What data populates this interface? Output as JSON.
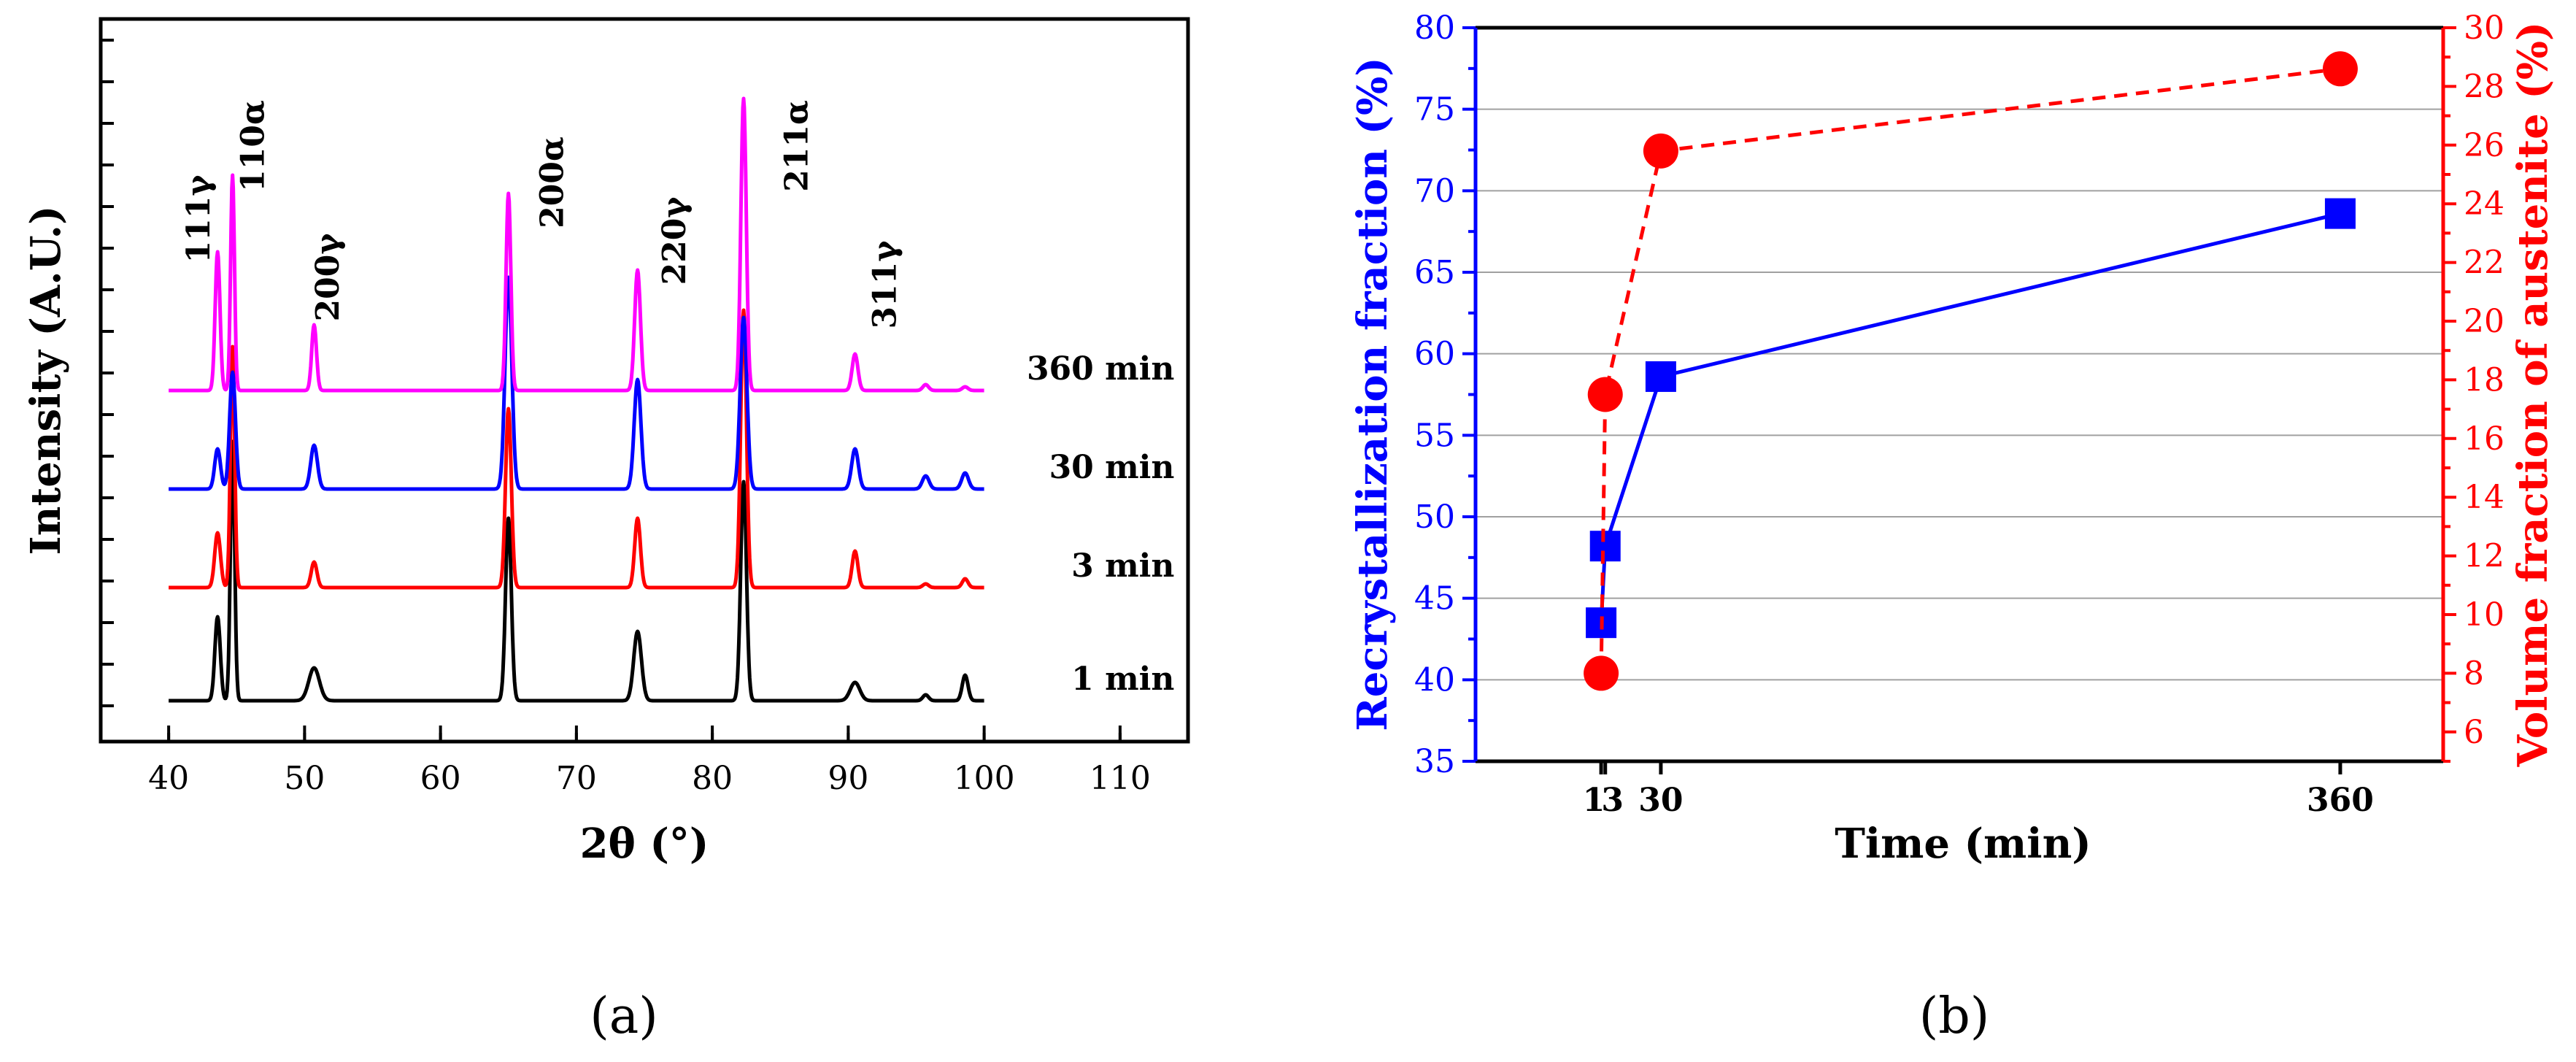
{
  "chart_data": [
    {
      "panel_label": "(a)",
      "type": "line",
      "xlabel": "2θ (°)",
      "ylabel": "Intensity (A.U.)",
      "xlim": [
        35,
        115
      ],
      "x_ticks": [
        40,
        50,
        60,
        70,
        80,
        90,
        100,
        110
      ],
      "y_tick_labels": "none",
      "series": [
        {
          "name": "1 min",
          "color": "#000000",
          "baseline": 0.0,
          "peaks": [
            [
              43.6,
              1.15,
              0.28
            ],
            [
              44.7,
              3.55,
              0.22
            ],
            [
              50.7,
              0.45,
              0.55
            ],
            [
              65.0,
              2.5,
              0.3
            ],
            [
              74.5,
              0.95,
              0.4
            ],
            [
              82.3,
              3.0,
              0.3
            ],
            [
              90.5,
              0.25,
              0.5
            ],
            [
              95.7,
              0.08,
              0.3
            ],
            [
              98.6,
              0.35,
              0.3
            ]
          ]
        },
        {
          "name": "3 min",
          "color": "#ff0000",
          "baseline": 1.55,
          "peaks": [
            [
              43.6,
              0.75,
              0.3
            ],
            [
              44.7,
              3.3,
              0.22
            ],
            [
              50.7,
              0.35,
              0.3
            ],
            [
              65.0,
              2.45,
              0.3
            ],
            [
              74.5,
              0.95,
              0.3
            ],
            [
              82.3,
              3.8,
              0.3
            ],
            [
              90.5,
              0.5,
              0.3
            ],
            [
              95.7,
              0.05,
              0.3
            ],
            [
              98.6,
              0.12,
              0.3
            ]
          ]
        },
        {
          "name": "30 min",
          "color": "#0000ff",
          "baseline": 2.9,
          "peaks": [
            [
              43.6,
              0.55,
              0.3
            ],
            [
              44.7,
              1.6,
              0.3
            ],
            [
              50.7,
              0.6,
              0.35
            ],
            [
              65.0,
              2.9,
              0.35
            ],
            [
              74.5,
              1.5,
              0.35
            ],
            [
              82.3,
              2.35,
              0.35
            ],
            [
              90.5,
              0.55,
              0.35
            ],
            [
              95.7,
              0.18,
              0.35
            ],
            [
              98.6,
              0.22,
              0.35
            ]
          ]
        },
        {
          "name": "360 min",
          "color": "#ff00ff",
          "baseline": 4.25,
          "peaks": [
            [
              43.6,
              1.9,
              0.25
            ],
            [
              44.7,
              2.95,
              0.2
            ],
            [
              50.7,
              0.9,
              0.25
            ],
            [
              65.0,
              2.7,
              0.25
            ],
            [
              74.5,
              1.65,
              0.3
            ],
            [
              82.3,
              4.0,
              0.28
            ],
            [
              90.5,
              0.5,
              0.3
            ],
            [
              95.7,
              0.08,
              0.3
            ],
            [
              98.6,
              0.05,
              0.3
            ]
          ]
        }
      ],
      "peak_labels": [
        {
          "text": "111γ",
          "x": 43.6
        },
        {
          "text": "110α",
          "x": 44.7
        },
        {
          "text": "200γ",
          "x": 50.7
        },
        {
          "text": "200α",
          "x": 65.0
        },
        {
          "text": "220γ",
          "x": 74.5
        },
        {
          "text": "211α",
          "x": 82.3
        },
        {
          "text": "311γ",
          "x": 90.5
        }
      ]
    },
    {
      "panel_label": "(b)",
      "type": "line",
      "xlabel": "Time (min)",
      "ylabel": "Recrystallization fraction (%)",
      "y2label": "Volume fraction of austenite (%)",
      "x_ticks": [
        1,
        3,
        30,
        360
      ],
      "xlim": [
        -60,
        410
      ],
      "ylim": [
        35,
        80
      ],
      "y_ticks": [
        35,
        40,
        45,
        50,
        55,
        60,
        65,
        70,
        75,
        80
      ],
      "y2lim": [
        5,
        30
      ],
      "y2_ticks": [
        6,
        8,
        10,
        12,
        14,
        16,
        18,
        20,
        22,
        24,
        26,
        28,
        30
      ],
      "grid": "horizontal",
      "series": [
        {
          "name": "Recrystallization fraction (%)",
          "axis": "left",
          "color": "#0000ff",
          "marker": "square",
          "line": "solid",
          "x": [
            1,
            3,
            30,
            360
          ],
          "y": [
            43.5,
            48.2,
            58.6,
            68.6
          ]
        },
        {
          "name": "Volume fraction of austenite (%)",
          "axis": "right",
          "color": "#ff0000",
          "marker": "circle",
          "line": "dashed",
          "x": [
            1,
            3,
            30,
            360
          ],
          "y": [
            8.0,
            17.5,
            25.8,
            28.6
          ]
        }
      ]
    }
  ],
  "colors": {
    "left_axis": "#0000ff",
    "right_axis": "#ff0000",
    "grid": "#a0a0a0"
  }
}
